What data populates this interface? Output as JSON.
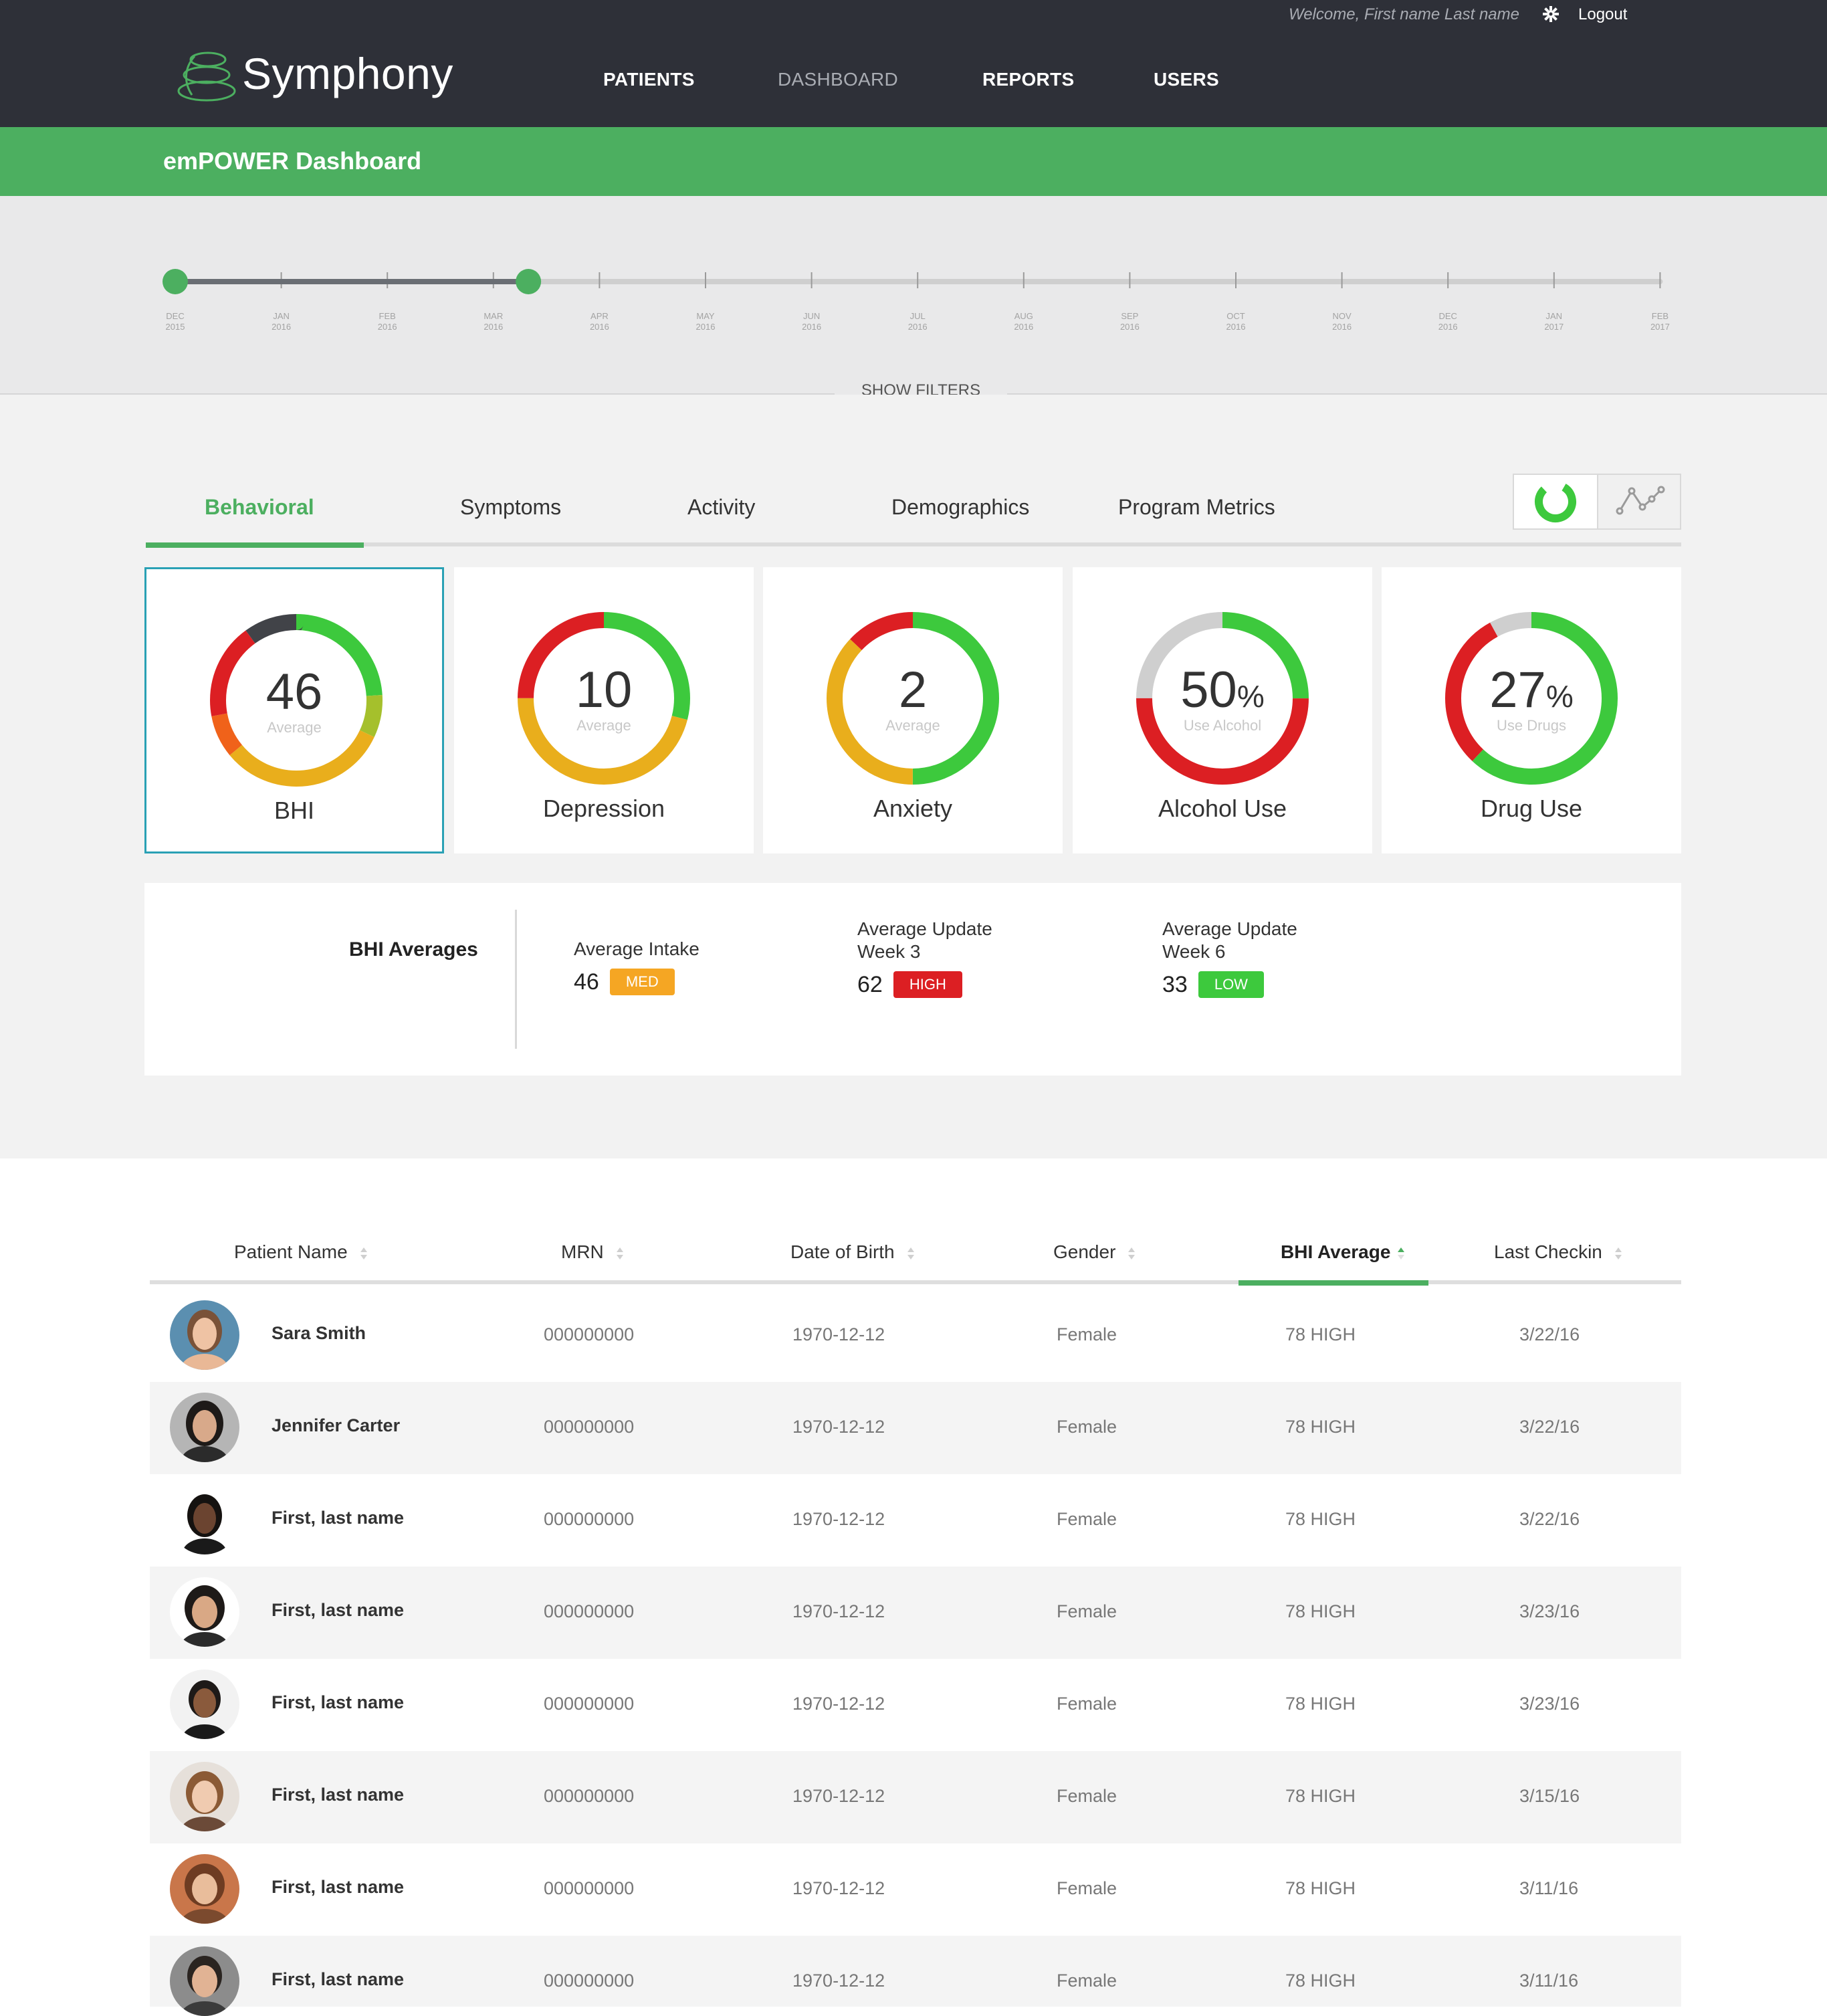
{
  "header": {
    "welcome": "Welcome, First name Last name",
    "logout": "Logout",
    "brand": "Symphony",
    "nav": [
      "PATIENTS",
      "DASHBOARD",
      "REPORTS",
      "USERS"
    ],
    "active_nav": "DASHBOARD",
    "gear_icon": "gear-icon"
  },
  "page": {
    "title": "emPOWER Dashboard"
  },
  "timeline": {
    "ticks": [
      {
        "month": "DEC",
        "year": "2015"
      },
      {
        "month": "JAN",
        "year": "2016"
      },
      {
        "month": "FEB",
        "year": "2016"
      },
      {
        "month": "MAR",
        "year": "2016"
      },
      {
        "month": "APR",
        "year": "2016"
      },
      {
        "month": "MAY",
        "year": "2016"
      },
      {
        "month": "JUN",
        "year": "2016"
      },
      {
        "month": "JUL",
        "year": "2016"
      },
      {
        "month": "AUG",
        "year": "2016"
      },
      {
        "month": "SEP",
        "year": "2016"
      },
      {
        "month": "OCT",
        "year": "2016"
      },
      {
        "month": "NOV",
        "year": "2016"
      },
      {
        "month": "DEC",
        "year": "2016"
      },
      {
        "month": "JAN",
        "year": "2017"
      },
      {
        "month": "FEB",
        "year": "2017"
      }
    ],
    "range_start": "DEC 2015",
    "range_end": "MAR 2016 (+1/3)",
    "show_filters": "SHOW FILTERS"
  },
  "tabs": [
    "Behavioral",
    "Symptoms",
    "Activity",
    "Demographics",
    "Program Metrics"
  ],
  "active_tab": "Behavioral",
  "view_toggle": {
    "options": [
      "donut-chart-icon",
      "line-chart-icon"
    ],
    "active": "donut-chart-icon"
  },
  "cards": [
    {
      "value": "46",
      "suffix": "",
      "sub": "Average",
      "label": "BHI",
      "segments": [
        {
          "frac": 0.24,
          "color": "#3dc93d"
        },
        {
          "frac": 0.08,
          "color": "#a5c02c"
        },
        {
          "frac": 0.32,
          "color": "#e9ae1c"
        },
        {
          "frac": 0.08,
          "color": "#f0621a"
        },
        {
          "frac": 0.18,
          "color": "#dc1f23"
        },
        {
          "frac": 0.1,
          "color": "#414348"
        }
      ]
    },
    {
      "value": "10",
      "suffix": "",
      "sub": "Average",
      "label": "Depression",
      "segments": [
        {
          "frac": 0.29,
          "color": "#3dc93d"
        },
        {
          "frac": 0.46,
          "color": "#e9ae1c"
        },
        {
          "frac": 0.25,
          "color": "#dc1f23"
        }
      ]
    },
    {
      "value": "2",
      "suffix": "",
      "sub": "Average",
      "label": "Anxiety",
      "segments": [
        {
          "frac": 0.5,
          "color": "#3dc93d"
        },
        {
          "frac": 0.37,
          "color": "#e9ae1c"
        },
        {
          "frac": 0.13,
          "color": "#dc1f23"
        }
      ]
    },
    {
      "value": "50",
      "suffix": "%",
      "sub": "Use Alcohol",
      "label": "Alcohol Use",
      "segments": [
        {
          "frac": 0.25,
          "color": "#3dc93d"
        },
        {
          "frac": 0.5,
          "color": "#dc1f23"
        },
        {
          "frac": 0.25,
          "color": "#cfcfcf"
        }
      ]
    },
    {
      "value": "27",
      "suffix": "%",
      "sub": "Use Drugs",
      "label": "Drug Use",
      "segments": [
        {
          "frac": 0.62,
          "color": "#3dc93d"
        },
        {
          "frac": 0.3,
          "color": "#dc1f23"
        },
        {
          "frac": 0.08,
          "color": "#cfcfcf"
        }
      ]
    }
  ],
  "averages": {
    "title": "BHI Averages",
    "items": [
      {
        "label": "Average Intake",
        "value": "46",
        "badge": "MED",
        "badge_color": "#f5a623"
      },
      {
        "label": "Average  Update\nWeek 3",
        "value": "62",
        "badge": "HIGH",
        "badge_color": "#dc1f23"
      },
      {
        "label": "Average Update\nWeek 6",
        "value": "33",
        "badge": "LOW",
        "badge_color": "#3dc93d"
      }
    ]
  },
  "table": {
    "columns": [
      "Patient Name",
      "MRN",
      "Date of Birth",
      "Gender",
      "BHI Average",
      "Last Checkin"
    ],
    "sorted_column": "BHI Average",
    "rows": [
      {
        "name": "Sara Smith",
        "mrn": "000000000",
        "dob": "1970-12-12",
        "gender": "Female",
        "bhi": "78  HIGH",
        "checkin": "3/22/16"
      },
      {
        "name": "Jennifer Carter",
        "mrn": "000000000",
        "dob": "1970-12-12",
        "gender": "Female",
        "bhi": "78  HIGH",
        "checkin": "3/22/16"
      },
      {
        "name": "First, last name",
        "mrn": "000000000",
        "dob": "1970-12-12",
        "gender": "Female",
        "bhi": "78  HIGH",
        "checkin": "3/22/16"
      },
      {
        "name": "First, last name",
        "mrn": "000000000",
        "dob": "1970-12-12",
        "gender": "Female",
        "bhi": "78  HIGH",
        "checkin": "3/23/16"
      },
      {
        "name": "First, last name",
        "mrn": "000000000",
        "dob": "1970-12-12",
        "gender": "Female",
        "bhi": "78  HIGH",
        "checkin": "3/23/16"
      },
      {
        "name": "First, last name",
        "mrn": "000000000",
        "dob": "1970-12-12",
        "gender": "Female",
        "bhi": "78  HIGH",
        "checkin": "3/15/16"
      },
      {
        "name": "First, last name",
        "mrn": "000000000",
        "dob": "1970-12-12",
        "gender": "Female",
        "bhi": "78  HIGH",
        "checkin": "3/11/16"
      },
      {
        "name": "First, last name",
        "mrn": "000000000",
        "dob": "1970-12-12",
        "gender": "Female",
        "bhi": "78  HIGH",
        "checkin": "3/11/16"
      }
    ]
  },
  "colors": {
    "nav_bg": "#2e3038",
    "brand_green": "#4caf60",
    "selected_card_border": "#2aa1b5"
  }
}
